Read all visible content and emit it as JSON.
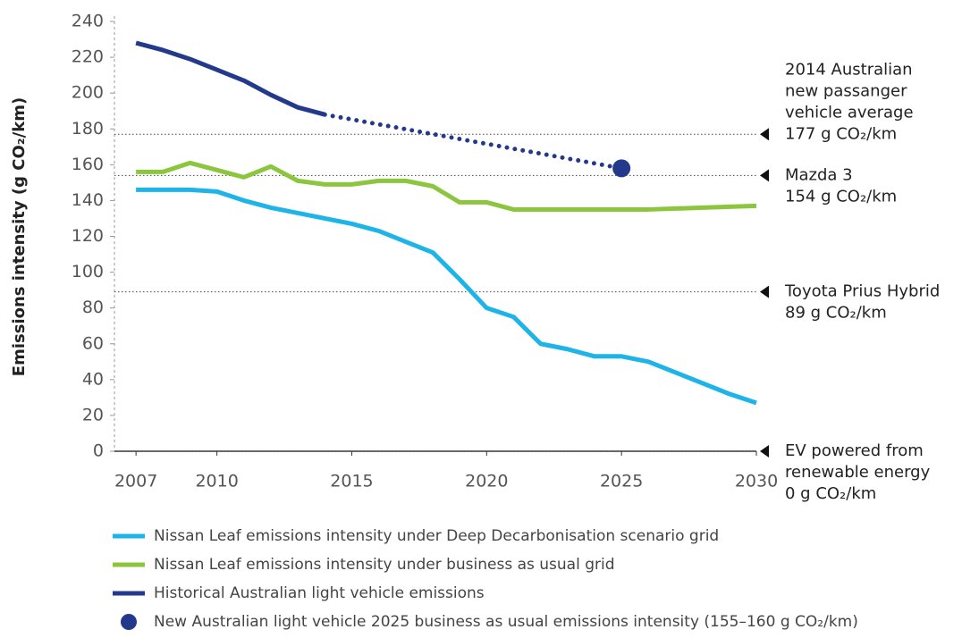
{
  "chart_data": {
    "type": "line",
    "y_label": "Emissions intensity (g CO₂/km)",
    "x": [
      2007,
      2008,
      2009,
      2010,
      2011,
      2012,
      2013,
      2014,
      2015,
      2016,
      2017,
      2018,
      2019,
      2020,
      2021,
      2022,
      2023,
      2024,
      2025,
      2026,
      2027,
      2028,
      2029,
      2030
    ],
    "xlim": [
      2006.2,
      2030
    ],
    "xticks": [
      2007,
      2010,
      2015,
      2020,
      2025,
      2030
    ],
    "ylim": [
      0,
      240
    ],
    "yticks": [
      0,
      20,
      40,
      60,
      80,
      100,
      120,
      140,
      160,
      180,
      200,
      220,
      240
    ],
    "series": [
      {
        "name": "Nissan Leaf emissions intensity under Deep Decarbonisation scenario grid",
        "color": "#1eb4e8",
        "values": [
          146,
          146,
          146,
          145,
          140,
          136,
          133,
          130,
          127,
          123,
          117,
          111,
          96,
          80,
          75,
          60,
          57,
          53,
          53,
          50,
          44,
          38,
          32,
          27
        ]
      },
      {
        "name": "Nissan Leaf emissions intensity under business as usual grid",
        "color": "#8cc63f",
        "values": [
          156,
          156,
          161,
          157,
          153,
          159,
          151,
          149,
          149,
          151,
          151,
          148,
          139,
          139,
          135,
          135,
          135,
          135,
          135,
          135,
          135.5,
          136,
          136.5,
          137
        ]
      },
      {
        "name": "Historical Australian light vehicle emissions",
        "color": "#233a8c",
        "values": [
          228,
          224,
          219,
          213,
          207,
          199,
          192,
          188,
          null,
          null,
          null,
          null,
          null,
          null,
          null,
          null,
          null,
          null,
          null,
          null,
          null,
          null,
          null,
          null
        ]
      },
      {
        "color": "#233a8c",
        "style": "dotted",
        "x": [
          2014,
          2025
        ],
        "values": [
          188,
          158
        ]
      },
      {
        "name": "New Australian light vehicle 2025 business as usual emissions intensity (155–160 g CO₂/km)",
        "color": "#233a8c",
        "style": "point",
        "x": [
          2025
        ],
        "values": [
          158
        ]
      }
    ],
    "reference_lines": [
      {
        "value": 177,
        "label": [
          "2014 Australian",
          "new passanger",
          "vehicle average",
          "177 g CO₂/km"
        ]
      },
      {
        "value": 154,
        "label": [
          "Mazda 3",
          "154 g CO₂/km"
        ]
      },
      {
        "value": 89,
        "label": [
          "Toyota Prius Hybrid",
          "89 g CO₂/km"
        ]
      },
      {
        "value": 0,
        "label": [
          "EV powered from",
          "renewable energy",
          "0 g CO₂/km"
        ]
      }
    ]
  }
}
